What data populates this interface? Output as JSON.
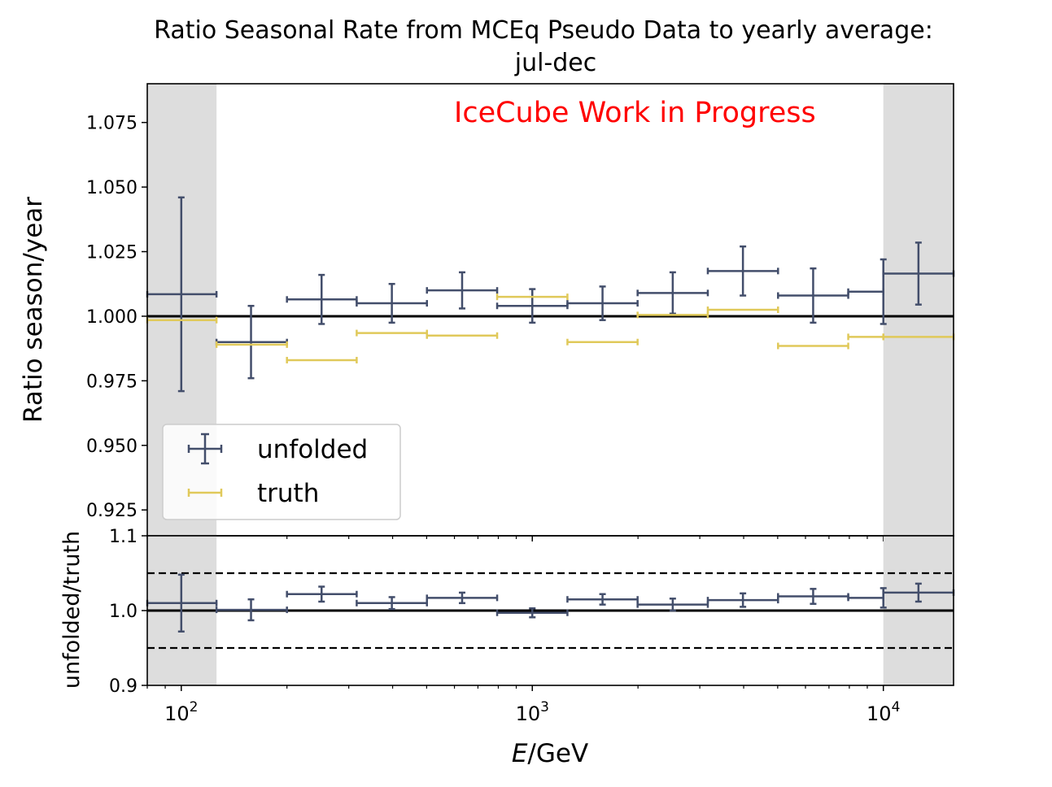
{
  "chart_data": [
    {
      "type": "scatter",
      "panel": "main",
      "title_line1": "Ratio Seasonal Rate from MCEq Pseudo Data to yearly average:",
      "title_line2": "jul-dec",
      "annotation": "IceCube Work in Progress",
      "ylabel": "Ratio season/year",
      "xscale": "log",
      "xlim": [
        80,
        15849
      ],
      "ylim": [
        0.915,
        1.09
      ],
      "yticks": [
        "0.925",
        "0.950",
        "0.975",
        "1.000",
        "1.025",
        "1.050",
        "1.075"
      ],
      "reference_line": 1.0,
      "shaded_regions": [
        [
          80,
          126
        ],
        [
          10000,
          15849
        ]
      ],
      "bin_edges": [
        80,
        126,
        200,
        316,
        501,
        794,
        1259,
        1995,
        3162,
        5012,
        7943,
        10000,
        15849
      ],
      "legend": {
        "position": "lower-left",
        "entries": [
          "unfolded",
          "truth"
        ]
      },
      "series": [
        {
          "name": "unfolded",
          "color": "#434e6b",
          "x": [
            100,
            158,
            251,
            398,
            631,
            1000,
            1585,
            2512,
            3981,
            6310,
            10000,
            12589
          ],
          "xlo": [
            80,
            126,
            200,
            316,
            501,
            794,
            1259,
            1995,
            3162,
            5012,
            7943,
            10000
          ],
          "xhi": [
            126,
            200,
            316,
            501,
            794,
            1259,
            1995,
            3162,
            5012,
            7943,
            10000,
            15849
          ],
          "y": [
            1.0085,
            0.99,
            1.0065,
            1.005,
            1.01,
            1.004,
            1.005,
            1.009,
            1.0175,
            1.008,
            1.0095,
            1.0165
          ],
          "yerr": [
            0.0375,
            0.014,
            0.0095,
            0.0075,
            0.007,
            0.0065,
            0.0065,
            0.008,
            0.0095,
            0.0105,
            0.0125,
            0.012
          ]
        },
        {
          "name": "truth",
          "color": "#e0c95a",
          "x": [
            100,
            158,
            251,
            398,
            631,
            1000,
            1585,
            2512,
            3981,
            6310,
            10000,
            12589
          ],
          "xlo": [
            80,
            126,
            200,
            316,
            501,
            794,
            1259,
            1995,
            3162,
            5012,
            7943,
            10000
          ],
          "xhi": [
            126,
            200,
            316,
            501,
            794,
            1259,
            1995,
            3162,
            5012,
            7943,
            10000,
            15849
          ],
          "y": [
            0.9985,
            0.989,
            0.983,
            0.9935,
            0.9925,
            1.0075,
            0.99,
            1.0005,
            1.0025,
            0.9885,
            0.992,
            0.992
          ]
        }
      ]
    },
    {
      "type": "scatter",
      "panel": "ratio",
      "xlabel": "E/GeV",
      "xlabel_italic": "E",
      "xlabel_rest": "/GeV",
      "ylabel": "unfolded/truth",
      "xscale": "log",
      "xlim": [
        80,
        15849
      ],
      "ylim": [
        0.9,
        1.1
      ],
      "yticks": [
        "0.9",
        "1.0",
        "1.1"
      ],
      "xticks": [
        {
          "value": 100,
          "base": "10",
          "exp": "2"
        },
        {
          "value": 1000,
          "base": "10",
          "exp": "3"
        },
        {
          "value": 10000,
          "base": "10",
          "exp": "4"
        }
      ],
      "reference_line": 1.0,
      "band_lines": [
        0.95,
        1.05
      ],
      "shaded_regions": [
        [
          80,
          126
        ],
        [
          10000,
          15849
        ]
      ],
      "series": [
        {
          "name": "unfolded/truth",
          "color": "#434e6b",
          "x": [
            100,
            158,
            251,
            398,
            631,
            1000,
            1585,
            2512,
            3981,
            6310,
            10000,
            12589
          ],
          "xlo": [
            80,
            126,
            200,
            316,
            501,
            794,
            1259,
            1995,
            3162,
            5012,
            7943,
            10000
          ],
          "xhi": [
            126,
            200,
            316,
            501,
            794,
            1259,
            1995,
            3162,
            5012,
            7943,
            10000,
            15849
          ],
          "y": [
            1.01,
            1.001,
            1.022,
            1.01,
            1.017,
            0.997,
            1.015,
            1.008,
            1.014,
            1.019,
            1.017,
            1.024
          ],
          "yerr": [
            0.038,
            0.014,
            0.01,
            0.008,
            0.007,
            0.006,
            0.007,
            0.008,
            0.009,
            0.01,
            0.013,
            0.012
          ]
        }
      ]
    }
  ]
}
